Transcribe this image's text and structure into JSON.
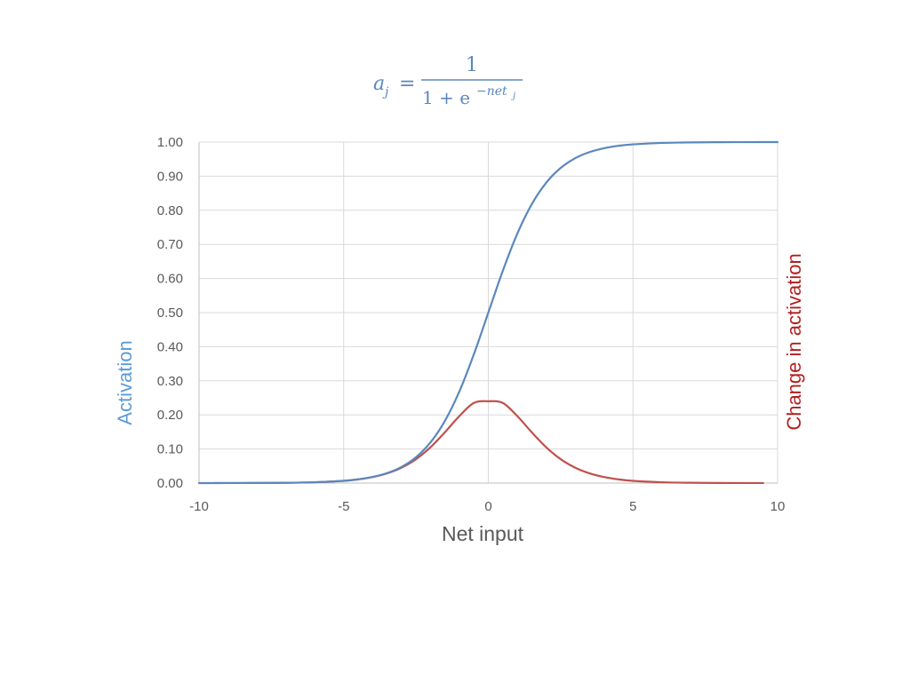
{
  "chart_data": {
    "type": "line",
    "formula": {
      "lhs": "a",
      "lhs_sub": "j",
      "equals": "=",
      "numerator": "1",
      "denominator_base": "1 + e",
      "denominator_exp": "−net",
      "denominator_exp_sub": "j"
    },
    "xlabel": "Net input",
    "ylabel_left": "Activation",
    "ylabel_right": "Change in activation",
    "xlim": [
      -10,
      10
    ],
    "ylim": [
      0,
      1
    ],
    "x_ticks": [
      "-10",
      "-5",
      "0",
      "5",
      "10"
    ],
    "x_tick_values": [
      -10,
      -5,
      0,
      5,
      10
    ],
    "y_ticks": [
      "0.00",
      "0.10",
      "0.20",
      "0.30",
      "0.40",
      "0.50",
      "0.60",
      "0.70",
      "0.80",
      "0.90",
      "1.00"
    ],
    "y_tick_values": [
      0,
      0.1,
      0.2,
      0.3,
      0.4,
      0.5,
      0.6,
      0.7,
      0.8,
      0.9,
      1.0
    ],
    "grid": true,
    "colors": {
      "activation": "#5b87bd",
      "change": "#c0504d",
      "ylabel_left": "#5b9bd5",
      "ylabel_right": "#b21e1e",
      "formula": "#5b87bd",
      "grid": "#d9d9d9",
      "axis": "#bfbfbf"
    },
    "series": [
      {
        "key": "activation",
        "x": [
          -10,
          -9,
          -8,
          -7,
          -6,
          -5,
          -4.5,
          -4,
          -3.5,
          -3,
          -2.5,
          -2,
          -1.5,
          -1,
          -0.5,
          0,
          0.5,
          1,
          1.5,
          2,
          2.5,
          3,
          3.5,
          4,
          4.5,
          5,
          6,
          7,
          8,
          9,
          10
        ],
        "y": [
          0.0,
          0.0001,
          0.0003,
          0.0009,
          0.0025,
          0.0067,
          0.011,
          0.018,
          0.0293,
          0.0474,
          0.0759,
          0.1192,
          0.1824,
          0.2689,
          0.3775,
          0.5,
          0.6225,
          0.7311,
          0.8176,
          0.8808,
          0.9241,
          0.9526,
          0.9707,
          0.982,
          0.989,
          0.9933,
          0.9975,
          0.9991,
          0.9997,
          0.9999,
          1.0
        ]
      },
      {
        "key": "change",
        "x": [
          -9.5,
          -8,
          -7,
          -6,
          -5,
          -4.5,
          -4,
          -3.5,
          -3,
          -2.5,
          -2,
          -1.5,
          -1,
          -0.5,
          0,
          0.5,
          1,
          1.5,
          2,
          2.5,
          3,
          3.5,
          4,
          4.5,
          5,
          6,
          7,
          8,
          9.5
        ],
        "y": [
          0.0001,
          0.0003,
          0.0009,
          0.0025,
          0.0066,
          0.0109,
          0.0177,
          0.0285,
          0.0452,
          0.0701,
          0.105,
          0.1491,
          0.1966,
          0.235,
          0.24,
          0.235,
          0.1966,
          0.1491,
          0.105,
          0.0701,
          0.0452,
          0.0285,
          0.0177,
          0.0109,
          0.0066,
          0.0025,
          0.0009,
          0.0003,
          0.0001
        ]
      }
    ]
  }
}
